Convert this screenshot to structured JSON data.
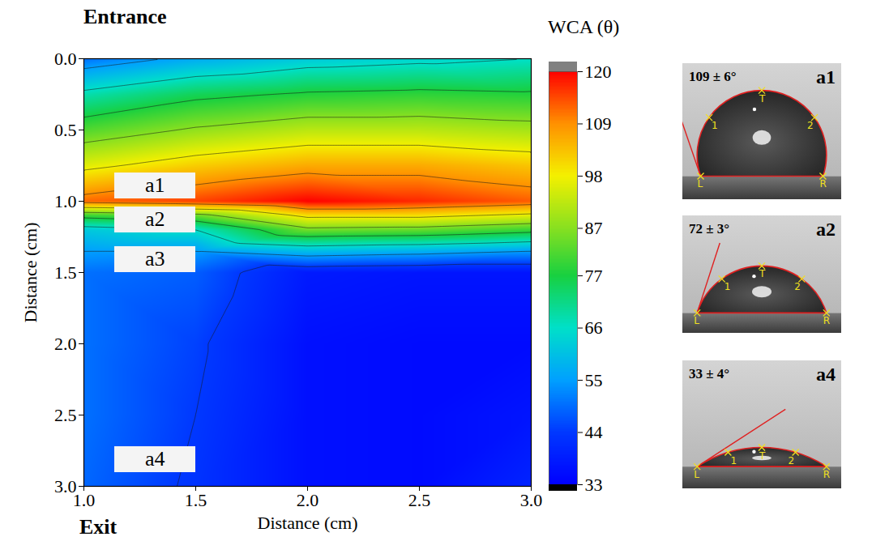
{
  "chart_data": {
    "type": "contour",
    "texts": {
      "top_left": "Entrance",
      "bottom_left": "Exit"
    },
    "x_label": "Distance (cm)",
    "y_label": "Distance (cm)",
    "x": [
      1.0,
      1.5,
      2.0,
      2.5,
      3.0
    ],
    "y": [
      0.0,
      0.25,
      0.5,
      0.75,
      1.0,
      1.1,
      1.2,
      1.35,
      1.5,
      2.0,
      2.5,
      3.0
    ],
    "values": [
      [
        50,
        57,
        62,
        64,
        66
      ],
      [
        68,
        75,
        78,
        79,
        78
      ],
      [
        82,
        88,
        92,
        92,
        90
      ],
      [
        96,
        102,
        106,
        106,
        103
      ],
      [
        112,
        115,
        120,
        117,
        113
      ],
      [
        80,
        84,
        100,
        100,
        96
      ],
      [
        62,
        66,
        85,
        84,
        80
      ],
      [
        55,
        55,
        60,
        58,
        55
      ],
      [
        50,
        48,
        38,
        37,
        37
      ],
      [
        50,
        45,
        36,
        35,
        35
      ],
      [
        50,
        44,
        36,
        35,
        37
      ],
      [
        49,
        43,
        36,
        35,
        40
      ]
    ],
    "xlim": [
      1.0,
      3.0
    ],
    "xticks": [
      {
        "value": 1.0,
        "label": "1.0"
      },
      {
        "value": 1.5,
        "label": "1.5"
      },
      {
        "value": 2.0,
        "label": "2.0"
      },
      {
        "value": 2.5,
        "label": "2.5"
      },
      {
        "value": 3.0,
        "label": "3.0"
      }
    ],
    "ylim": [
      0.0,
      3.0
    ],
    "yticks": [
      {
        "value": 0.0,
        "label": "0.0"
      },
      {
        "value": 0.5,
        "label": "0.5"
      },
      {
        "value": 1.0,
        "label": "1.0"
      },
      {
        "value": 1.5,
        "label": "1.5"
      },
      {
        "value": 2.0,
        "label": "2.0"
      },
      {
        "value": 2.5,
        "label": "2.5"
      },
      {
        "value": 3.0,
        "label": "3.0"
      }
    ],
    "colorbar": {
      "title": "WCA (θ)",
      "range": [
        33,
        120
      ],
      "ticks": [
        33,
        44,
        55,
        66,
        77,
        87,
        98,
        109,
        120
      ],
      "colors": [
        "#0000ff",
        "#0038ff",
        "#00a0ff",
        "#00e0c8",
        "#18d040",
        "#88e020",
        "#f4f000",
        "#ff9000",
        "#ff0000"
      ]
    },
    "annotations": [
      {
        "label": "a1",
        "x": 1.32,
        "y": 0.89
      },
      {
        "label": "a2",
        "x": 1.32,
        "y": 1.13
      },
      {
        "label": "a3",
        "x": 1.32,
        "y": 1.41
      },
      {
        "label": "a4",
        "x": 1.32,
        "y": 2.81
      }
    ],
    "insets": [
      {
        "label": "a1",
        "angle": 109,
        "angle_label": "109 ± 6°",
        "fit_points": [
          "L",
          "1",
          "T",
          "2",
          "R"
        ]
      },
      {
        "label": "a2",
        "angle": 72,
        "angle_label": "72 ± 3°",
        "fit_points": [
          "L",
          "1",
          "T",
          "2",
          "R"
        ]
      },
      {
        "label": "a4",
        "angle": 33,
        "angle_label": "33 ± 4°",
        "fit_points": [
          "L",
          "1",
          "T",
          "2",
          "R"
        ]
      }
    ]
  }
}
